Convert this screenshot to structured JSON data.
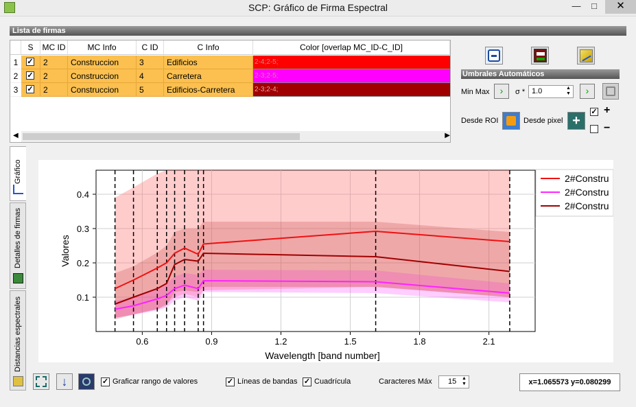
{
  "window": {
    "title": "SCP: Gráfico de Firma Espectral",
    "minimize": "—",
    "maximize": "□",
    "close": "✕"
  },
  "list": {
    "header": "Lista de firmas",
    "columns": [
      "",
      "S",
      "MC ID",
      "MC Info",
      "C ID",
      "C Info",
      "Color [overlap MC_ID-C_ID]"
    ],
    "rows": [
      {
        "num": "1",
        "checked": true,
        "mc_id": "2",
        "mc_info": "Construccion",
        "c_id": "3",
        "c_info": "Edificios",
        "overlap": "2-4;2-5;",
        "color": "#ff0000"
      },
      {
        "num": "2",
        "checked": true,
        "mc_id": "2",
        "mc_info": "Construccion",
        "c_id": "4",
        "c_info": "Carretera",
        "overlap": "2-3;2-5;",
        "color": "#ff00ff"
      },
      {
        "num": "3",
        "checked": true,
        "mc_id": "2",
        "mc_info": "Construccion",
        "c_id": "5",
        "c_info": "Edificios-Carretera",
        "overlap": "2-3;2-4;",
        "color": "#a00000"
      }
    ]
  },
  "thresholds": {
    "header": "Umbrales  Automáticos",
    "min_max_label": "Min Max",
    "sigma_label": "σ *",
    "sigma_value": "1.0",
    "desde_roi": "Desde ROI",
    "desde_pixel": "Desde pixel",
    "plus": "+",
    "minus": "−"
  },
  "tabs": [
    "Gráfico",
    "Detalles de firmas",
    "Distancias espectrales"
  ],
  "bottom": {
    "graficar_rango": "Graficar rango de valores",
    "lineas_bandas": "Líneas de bandas",
    "cuadricula": "Cuadrícula",
    "caracteres_max": "Caracteres Máx",
    "caracteres_value": "15",
    "coords": "x=1.065573 y=0.080299"
  },
  "chart_data": {
    "type": "line",
    "xlabel": "Wavelength [band number]",
    "ylabel": "Valores",
    "xlim": [
      0.4,
      2.3
    ],
    "ylim": [
      0.0,
      0.47
    ],
    "xticks": [
      "0.6",
      "0.9",
      "1.2",
      "1.5",
      "1.8",
      "2.1"
    ],
    "xtick_values": [
      0.6,
      0.9,
      1.2,
      1.5,
      1.8,
      2.1
    ],
    "yticks": [
      "0.1",
      "0.2",
      "0.3",
      "0.4"
    ],
    "ytick_values": [
      0.1,
      0.2,
      0.3,
      0.4
    ],
    "band_lines": [
      0.482,
      0.562,
      0.665,
      0.705,
      0.74,
      0.783,
      0.842,
      0.865,
      1.61,
      2.19
    ],
    "x": [
      0.482,
      0.562,
      0.665,
      0.705,
      0.74,
      0.783,
      0.842,
      0.865,
      1.61,
      2.19
    ],
    "legend": [
      "2#Constru",
      "2#Constru",
      "2#Constru"
    ],
    "series": [
      {
        "color": "#ee1111",
        "fill": "rgba(255,110,110,0.35)",
        "values": [
          0.125,
          0.15,
          0.185,
          0.2,
          0.228,
          0.243,
          0.225,
          0.255,
          0.292,
          0.262
        ],
        "upper": [
          0.39,
          0.42,
          0.46,
          0.47,
          0.47,
          0.47,
          0.47,
          0.47,
          0.47,
          0.47
        ],
        "lower": [
          0.04,
          0.05,
          0.065,
          0.08,
          0.1,
          0.11,
          0.1,
          0.12,
          0.13,
          0.1
        ]
      },
      {
        "color": "#ff22ff",
        "fill": "rgba(255,90,255,0.30)",
        "values": [
          0.065,
          0.075,
          0.095,
          0.105,
          0.125,
          0.135,
          0.125,
          0.148,
          0.145,
          0.112
        ],
        "upper": [
          0.09,
          0.1,
          0.125,
          0.14,
          0.16,
          0.17,
          0.165,
          0.18,
          0.178,
          0.14
        ],
        "lower": [
          0.04,
          0.048,
          0.062,
          0.07,
          0.09,
          0.1,
          0.09,
          0.115,
          0.112,
          0.085
        ]
      },
      {
        "color": "#a00000",
        "fill": "rgba(190,60,60,0.25)",
        "values": [
          0.08,
          0.1,
          0.125,
          0.14,
          0.195,
          0.21,
          0.205,
          0.228,
          0.218,
          0.175
        ],
        "upper": [
          0.17,
          0.19,
          0.23,
          0.25,
          0.29,
          0.3,
          0.3,
          0.32,
          0.32,
          0.29
        ],
        "lower": [
          0.035,
          0.05,
          0.065,
          0.075,
          0.115,
          0.12,
          0.115,
          0.13,
          0.13,
          0.1
        ]
      }
    ]
  }
}
